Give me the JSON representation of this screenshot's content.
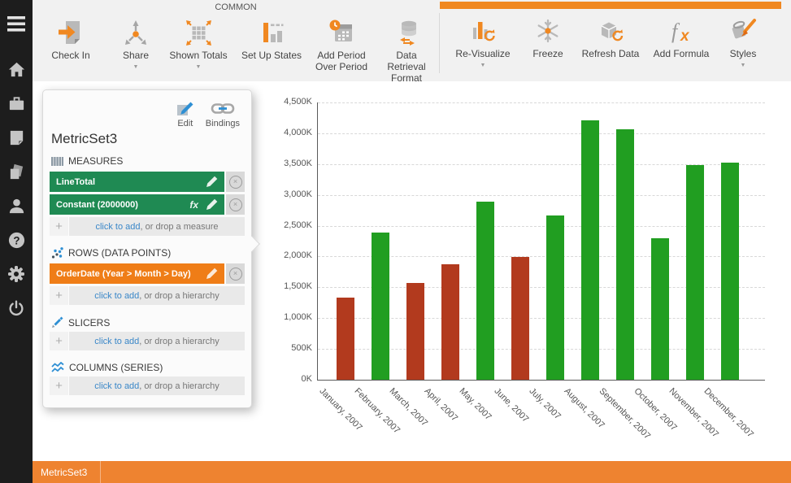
{
  "colors": {
    "accent_orange": "#f08821",
    "sidebar_bg": "#1d1d1d",
    "ribbon_bg": "#f1f1f1",
    "chip_green": "#1f8a53",
    "chip_orange": "#ef7d17",
    "bar_red": "#b23a1e",
    "bar_green": "#219e21",
    "link_blue": "#3a87c8",
    "bottom_bar_orange": "#ee8330"
  },
  "sidebar": {
    "icons": [
      "menu-icon",
      "home-icon",
      "briefcase-icon",
      "page-icon",
      "documents-icon",
      "user-icon",
      "help-icon",
      "gear-icon",
      "power-icon"
    ]
  },
  "ribbon": {
    "group_label": "COMMON",
    "buttons": [
      {
        "label": "Check In",
        "icon": "check-in-icon",
        "has_dropdown": false
      },
      {
        "label": "Share",
        "icon": "share-icon",
        "has_dropdown": true
      },
      {
        "label": "Shown Totals",
        "icon": "shown-totals-icon",
        "has_dropdown": true
      },
      {
        "label": "Set Up States",
        "icon": "set-up-states-icon",
        "has_dropdown": false
      },
      {
        "label": "Add Period Over Period",
        "icon": "add-period-over-period-icon",
        "has_dropdown": false
      },
      {
        "label": "Data Retrieval Format",
        "icon": "data-retrieval-format-icon",
        "has_dropdown": true
      },
      {
        "label": "Re-Visualize",
        "icon": "re-visualize-icon",
        "has_dropdown": true
      },
      {
        "label": "Freeze",
        "icon": "freeze-icon",
        "has_dropdown": false
      },
      {
        "label": "Refresh Data",
        "icon": "refresh-data-icon",
        "has_dropdown": false
      },
      {
        "label": "Add Formula",
        "icon": "add-formula-icon",
        "has_dropdown": false
      },
      {
        "label": "Styles",
        "icon": "styles-icon",
        "has_dropdown": true
      }
    ]
  },
  "panel": {
    "title": "MetricSet3",
    "actions": [
      {
        "label": "Edit",
        "icon": "edit-icon"
      },
      {
        "label": "Bindings",
        "icon": "bindings-icon"
      }
    ],
    "measures": {
      "header": "MEASURES",
      "items": [
        {
          "label": "LineTotal",
          "has_formula": false
        },
        {
          "label": "Constant (2000000)",
          "has_formula": true
        }
      ],
      "add_link": "click to add",
      "add_suffix": ", or drop a measure"
    },
    "rows": {
      "header": "ROWS (DATA POINTS)",
      "items": [
        {
          "label": "OrderDate (Year > Month > Day)"
        }
      ],
      "add_link": "click to add",
      "add_suffix": ", or drop a hierarchy"
    },
    "slicers": {
      "header": "SLICERS",
      "add_link": "click to add",
      "add_suffix": ", or drop a hierarchy"
    },
    "columns": {
      "header": "COLUMNS (SERIES)",
      "add_link": "click to add",
      "add_suffix": ", or drop a hierarchy"
    }
  },
  "chart_data": {
    "type": "bar",
    "title": "",
    "xlabel": "",
    "ylabel": "",
    "legend": "none",
    "grid": "horizontal-dashed",
    "categories": [
      "January, 2007",
      "February, 2007",
      "March, 2007",
      "April, 2007",
      "May, 2007",
      "June, 2007",
      "July, 2007",
      "August, 2007",
      "September, 2007",
      "October, 2007",
      "November, 2007",
      "December, 2007"
    ],
    "values_K": [
      1330,
      2390,
      1570,
      1870,
      2890,
      1990,
      2670,
      4210,
      4060,
      2300,
      3480,
      3520
    ],
    "bar_colors": [
      "#b23a1e",
      "#219e21",
      "#b23a1e",
      "#b23a1e",
      "#219e21",
      "#b23a1e",
      "#219e21",
      "#219e21",
      "#219e21",
      "#219e21",
      "#219e21",
      "#219e21"
    ],
    "ylim_K": [
      0,
      4500
    ],
    "y_tick_step_K": 500,
    "y_tick_labels": [
      "0K",
      "500K",
      "1,000K",
      "1,500K",
      "2,000K",
      "2,500K",
      "3,000K",
      "3,500K",
      "4,000K",
      "4,500K"
    ]
  },
  "bottom_bar": {
    "tab_label": "MetricSet3"
  }
}
